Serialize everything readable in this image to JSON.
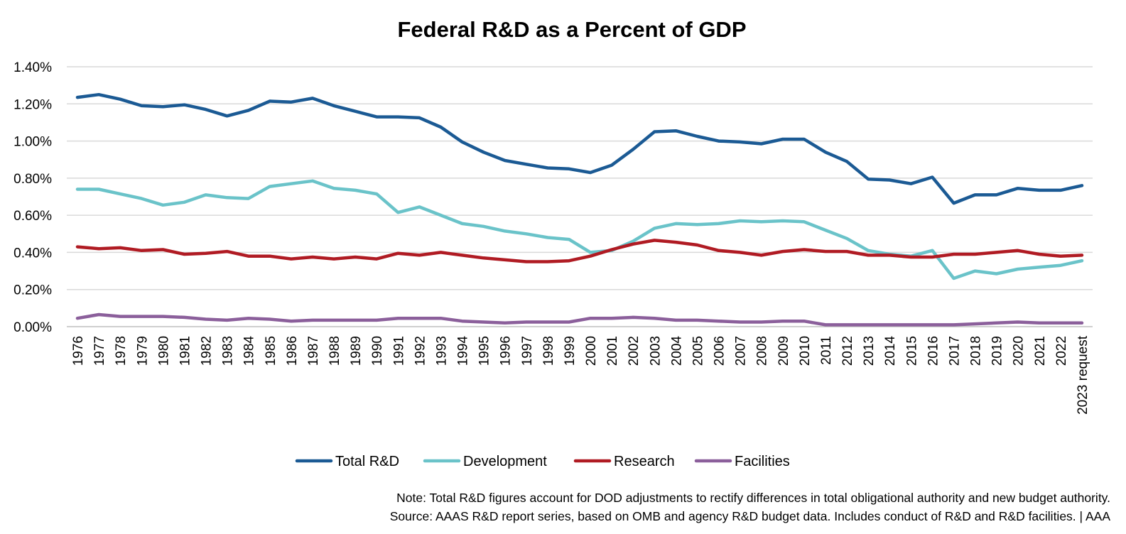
{
  "chart_data": {
    "type": "line",
    "title": "Federal R&D as a Percent of GDP",
    "xlabel": "",
    "ylabel": "",
    "ylim": [
      0,
      1.4
    ],
    "ytick_values": [
      0,
      0.2,
      0.4,
      0.6,
      0.8,
      1.0,
      1.2,
      1.4
    ],
    "ytick_labels": [
      "0.00%",
      "0.20%",
      "0.40%",
      "0.60%",
      "0.80%",
      "1.00%",
      "1.20%",
      "1.40%"
    ],
    "grid": "horizontal",
    "legend_position": "bottom",
    "categories": [
      "1976",
      "1977",
      "1978",
      "1979",
      "1980",
      "1981",
      "1982",
      "1983",
      "1984",
      "1985",
      "1986",
      "1987",
      "1988",
      "1989",
      "1990",
      "1991",
      "1992",
      "1993",
      "1994",
      "1995",
      "1996",
      "1997",
      "1998",
      "1999",
      "2000",
      "2001",
      "2002",
      "2003",
      "2004",
      "2005",
      "2006",
      "2007",
      "2008",
      "2009",
      "2010",
      "2011",
      "2012",
      "2013",
      "2014",
      "2015",
      "2016",
      "2017",
      "2018",
      "2019",
      "2020",
      "2021",
      "2022",
      "2023 request"
    ],
    "series": [
      {
        "name": "Total R&D",
        "color": "#1B5A94",
        "values": [
          1.235,
          1.25,
          1.225,
          1.19,
          1.185,
          1.195,
          1.17,
          1.135,
          1.165,
          1.215,
          1.21,
          1.23,
          1.19,
          1.16,
          1.13,
          1.13,
          1.125,
          1.075,
          0.995,
          0.94,
          0.895,
          0.875,
          0.855,
          0.85,
          0.83,
          0.87,
          0.955,
          1.05,
          1.055,
          1.025,
          1.0,
          0.995,
          0.985,
          1.01,
          1.01,
          0.94,
          0.89,
          0.795,
          0.79,
          0.77,
          0.805,
          0.665,
          0.71,
          0.71,
          0.745,
          0.735,
          0.735,
          0.76
        ]
      },
      {
        "name": "Development",
        "color": "#6AC3C9",
        "values": [
          0.74,
          0.74,
          0.715,
          0.69,
          0.655,
          0.67,
          0.71,
          0.695,
          0.69,
          0.755,
          0.77,
          0.785,
          0.745,
          0.735,
          0.715,
          0.615,
          0.645,
          0.6,
          0.555,
          0.54,
          0.515,
          0.5,
          0.48,
          0.47,
          0.4,
          0.41,
          0.46,
          0.53,
          0.555,
          0.55,
          0.555,
          0.57,
          0.565,
          0.57,
          0.565,
          0.52,
          0.475,
          0.41,
          0.39,
          0.38,
          0.41,
          0.26,
          0.3,
          0.285,
          0.31,
          0.32,
          0.33,
          0.355
        ]
      },
      {
        "name": "Research",
        "color": "#B01B23",
        "values": [
          0.43,
          0.42,
          0.425,
          0.41,
          0.415,
          0.39,
          0.395,
          0.405,
          0.38,
          0.38,
          0.365,
          0.375,
          0.365,
          0.375,
          0.365,
          0.395,
          0.385,
          0.4,
          0.385,
          0.37,
          0.36,
          0.35,
          0.35,
          0.355,
          0.38,
          0.415,
          0.445,
          0.465,
          0.455,
          0.44,
          0.41,
          0.4,
          0.385,
          0.405,
          0.415,
          0.405,
          0.405,
          0.385,
          0.385,
          0.375,
          0.375,
          0.39,
          0.39,
          0.4,
          0.41,
          0.39,
          0.38,
          0.385
        ]
      },
      {
        "name": "Facilities",
        "color": "#8B5F9B",
        "values": [
          0.045,
          0.065,
          0.055,
          0.055,
          0.055,
          0.05,
          0.04,
          0.035,
          0.045,
          0.04,
          0.03,
          0.035,
          0.035,
          0.035,
          0.035,
          0.045,
          0.045,
          0.045,
          0.03,
          0.025,
          0.02,
          0.025,
          0.025,
          0.025,
          0.045,
          0.045,
          0.05,
          0.045,
          0.035,
          0.035,
          0.03,
          0.025,
          0.025,
          0.03,
          0.03,
          0.01,
          0.01,
          0.01,
          0.01,
          0.01,
          0.01,
          0.01,
          0.015,
          0.02,
          0.025,
          0.02,
          0.02,
          0.02
        ]
      }
    ]
  },
  "notes": {
    "note": "Note: Total R&D figures account for DOD adjustments to rectify differences in total obligational authority and new budget authority.",
    "source": "Source: AAAS R&D report series, based on OMB and agency R&D budget data. Includes conduct of R&D and R&D facilities. | AAA"
  }
}
